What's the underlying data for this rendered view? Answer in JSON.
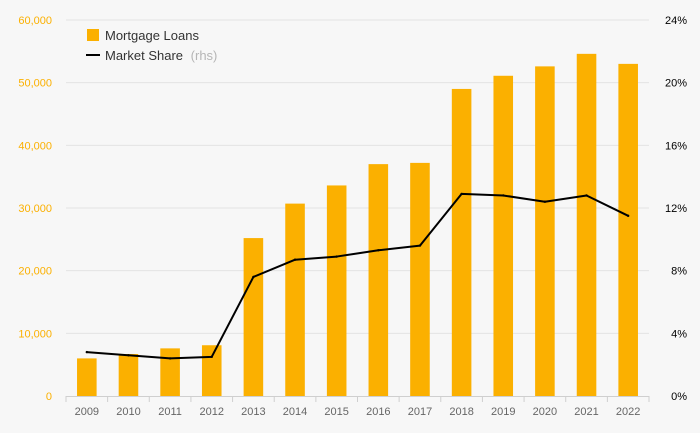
{
  "chart_data": {
    "type": "bar",
    "title": "",
    "xlabel": "",
    "ylabel": "",
    "categories": [
      "2009",
      "2010",
      "2011",
      "2012",
      "2013",
      "2014",
      "2015",
      "2016",
      "2017",
      "2018",
      "2019",
      "2020",
      "2021",
      "2022"
    ],
    "series": [
      {
        "name": "Mortgage Loans",
        "type": "bar",
        "axis": "left",
        "color": "#FBB000",
        "values": [
          6000,
          6700,
          7600,
          8100,
          25200,
          30700,
          33600,
          37000,
          37200,
          49000,
          51100,
          52600,
          54600,
          53000
        ]
      },
      {
        "name": "Market Share",
        "type": "line",
        "axis": "right",
        "color": "#000000",
        "values": [
          2.8,
          2.6,
          2.4,
          2.5,
          7.6,
          8.7,
          8.9,
          9.3,
          9.6,
          12.9,
          12.8,
          12.4,
          12.8,
          11.5
        ]
      }
    ],
    "y_left": {
      "ylim": [
        0,
        60000
      ],
      "ticks": [
        0,
        10000,
        20000,
        30000,
        40000,
        50000,
        60000
      ],
      "tick_labels": [
        "0",
        "10,000",
        "20,000",
        "30,000",
        "40,000",
        "50,000",
        "60,000"
      ],
      "tick_color": "#FBB000"
    },
    "y_right": {
      "ylim": [
        0,
        24
      ],
      "ticks": [
        0,
        4,
        8,
        12,
        16,
        20,
        24
      ],
      "tick_labels": [
        "0%",
        "4%",
        "8%",
        "12%",
        "16%",
        "20%",
        "24%"
      ],
      "tick_color": "#000000"
    },
    "grid": true,
    "legend": {
      "placement": "top-left",
      "entries": [
        {
          "label": "Mortgage Loans",
          "note": ""
        },
        {
          "label": "Market Share",
          "note": "(rhs)"
        }
      ]
    }
  }
}
